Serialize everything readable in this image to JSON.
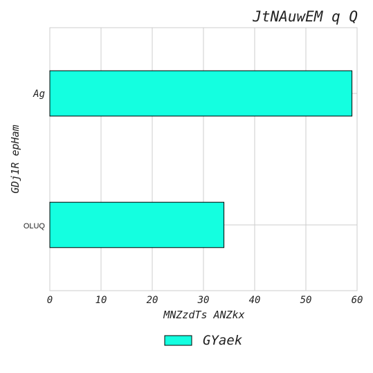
{
  "chart_data": {
    "type": "bar",
    "orientation": "horizontal",
    "title": "JtNAuwEM q Q",
    "xlabel": "MNZzdTs ANZkx",
    "ylabel": "GDj1R epHam",
    "categories": [
      "Ag",
      "OLUQ"
    ],
    "series": [
      {
        "name": "GYaek",
        "values": [
          59,
          34
        ],
        "color": "#14ffe0"
      }
    ],
    "xlim": [
      0,
      60
    ],
    "xticks": [
      0,
      10,
      20,
      30,
      40,
      50,
      60
    ],
    "grid": true,
    "legend_position": "bottom-center"
  }
}
